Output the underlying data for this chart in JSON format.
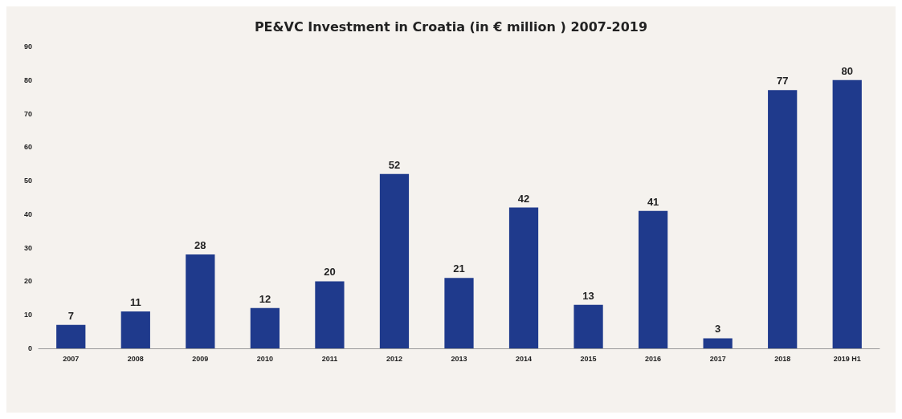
{
  "chart_data": {
    "type": "bar",
    "title": "PE&VC Investment in Croatia (in € million ) 2007-2019",
    "categories": [
      "2007",
      "2008",
      "2009",
      "2010",
      "2011",
      "2012",
      "2013",
      "2014",
      "2015",
      "2016",
      "2017",
      "2018",
      "2019 H1"
    ],
    "values": [
      7,
      11,
      28,
      12,
      20,
      52,
      21,
      42,
      13,
      41,
      3,
      77,
      80
    ],
    "color": "#1f3a8c",
    "ylim": [
      0,
      90
    ],
    "yticks": [
      0,
      10,
      20,
      30,
      40,
      50,
      60,
      70,
      80,
      90
    ],
    "data_labels": true
  }
}
